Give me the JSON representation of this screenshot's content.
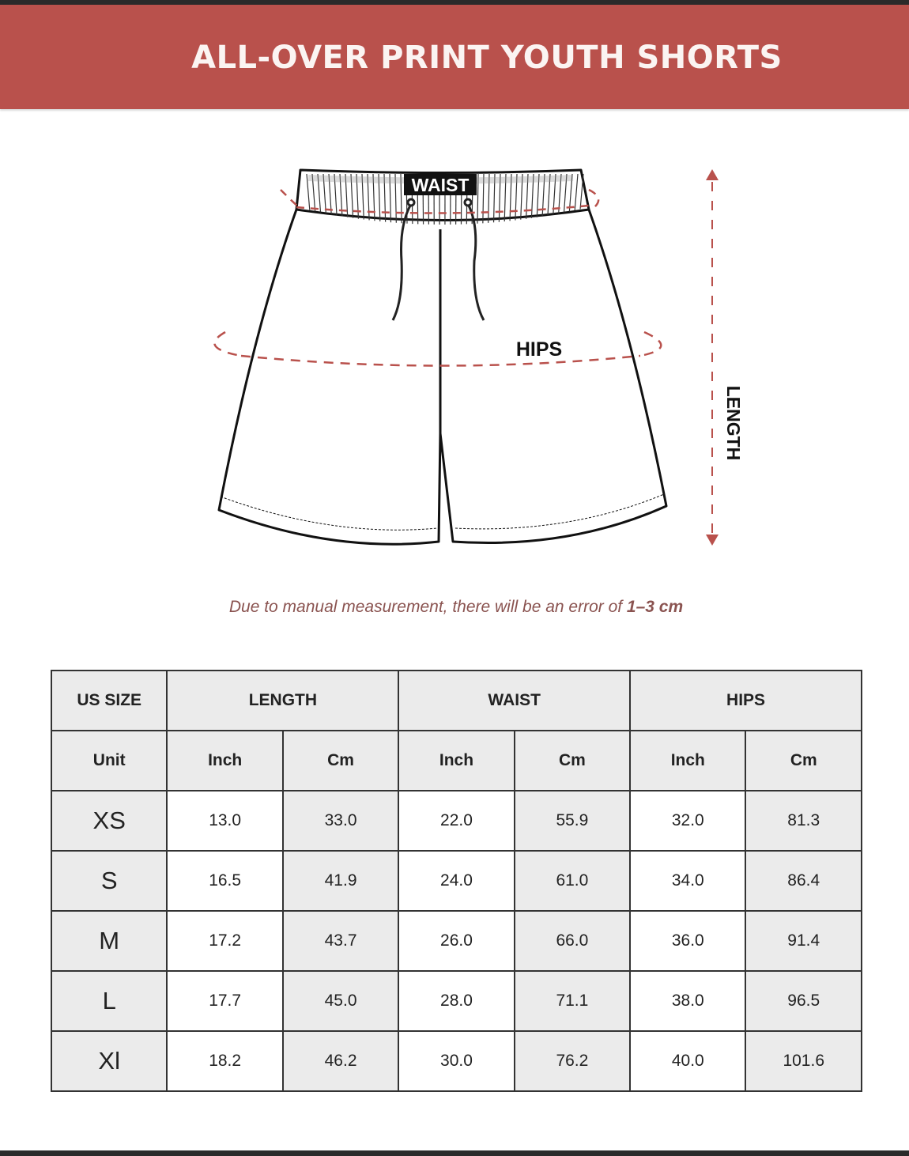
{
  "title": "ALL-OVER PRINT YOUTH SHORTS",
  "diagram": {
    "waist_label": "WAIST",
    "hips_label": "HIPS",
    "length_label": "LENGTH"
  },
  "note": {
    "text": "Due to manual measurement, there will be an error of ",
    "emphasis": "1–3 cm"
  },
  "colors": {
    "header": "#b9514c",
    "measure_line": "#b9514c",
    "cell_gray": "#ebebeb"
  },
  "table": {
    "header": {
      "size": "US SIZE",
      "length": "LENGTH",
      "waist": "WAIST",
      "hips": "HIPS"
    },
    "units": {
      "label": "Unit",
      "cols": [
        "Inch",
        "Cm",
        "Inch",
        "Cm",
        "Inch",
        "Cm"
      ]
    },
    "rows": [
      {
        "size": "XS",
        "values": [
          "13.0",
          "33.0",
          "22.0",
          "55.9",
          "32.0",
          "81.3"
        ]
      },
      {
        "size": "S",
        "values": [
          "16.5",
          "41.9",
          "24.0",
          "61.0",
          "34.0",
          "86.4"
        ]
      },
      {
        "size": "M",
        "values": [
          "17.2",
          "43.7",
          "26.0",
          "66.0",
          "36.0",
          "91.4"
        ]
      },
      {
        "size": "L",
        "values": [
          "17.7",
          "45.0",
          "28.0",
          "71.1",
          "38.0",
          "96.5"
        ]
      },
      {
        "size": "Xl",
        "values": [
          "18.2",
          "46.2",
          "30.0",
          "76.2",
          "40.0",
          "101.6"
        ]
      }
    ]
  }
}
